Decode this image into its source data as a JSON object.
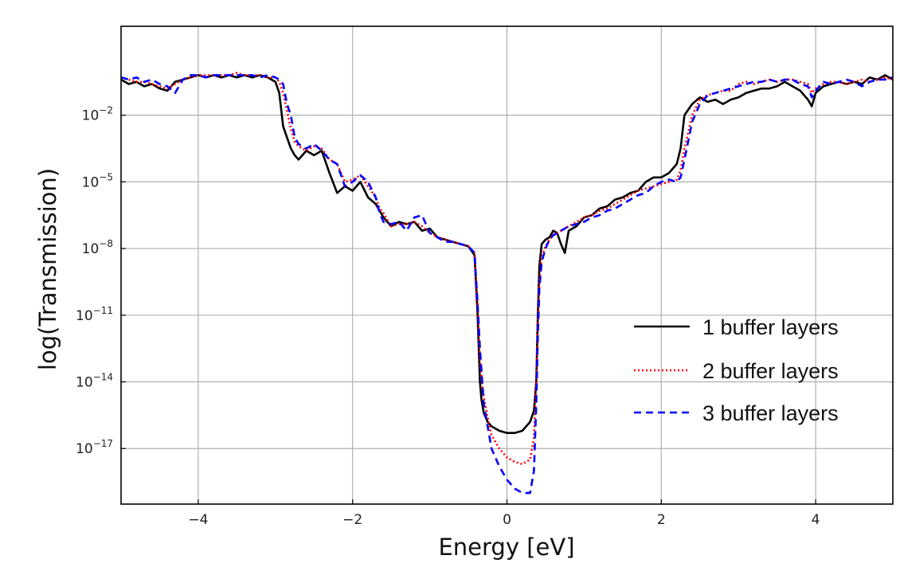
{
  "chart_data": {
    "type": "line",
    "title": "",
    "xlabel": "Energy [eV]",
    "ylabel": "log(Transmission)",
    "xlim": [
      -5,
      5
    ],
    "ylim_log10": [
      -19.5,
      2
    ],
    "yscale": "log",
    "grid": true,
    "legend_position": "lower-right",
    "xticks": [
      {
        "v": -4,
        "label": "−4"
      },
      {
        "v": -2,
        "label": "−2"
      },
      {
        "v": 0,
        "label": "0"
      },
      {
        "v": 2,
        "label": "2"
      },
      {
        "v": 4,
        "label": "4"
      }
    ],
    "yticks": [
      {
        "exp": -2,
        "base": "10",
        "sup": "−2"
      },
      {
        "exp": -5,
        "base": "10",
        "sup": "−5"
      },
      {
        "exp": -8,
        "base": "10",
        "sup": "−8"
      },
      {
        "exp": -11,
        "base": "10",
        "sup": "−11"
      },
      {
        "exp": -14,
        "base": "10",
        "sup": "−14"
      },
      {
        "exp": -17,
        "base": "10",
        "sup": "−17"
      }
    ],
    "series": [
      {
        "name": "1 buffer layers",
        "color": "#000000",
        "dash": "",
        "x": [
          -5,
          -4.9,
          -4.8,
          -4.7,
          -4.6,
          -4.5,
          -4.4,
          -4.3,
          -4.2,
          -4.1,
          -4.0,
          -3.9,
          -3.8,
          -3.7,
          -3.6,
          -3.5,
          -3.4,
          -3.3,
          -3.2,
          -3.1,
          -3.0,
          -2.95,
          -2.9,
          -2.85,
          -2.8,
          -2.75,
          -2.7,
          -2.6,
          -2.5,
          -2.4,
          -2.3,
          -2.2,
          -2.1,
          -2.0,
          -1.9,
          -1.8,
          -1.7,
          -1.65,
          -1.6,
          -1.5,
          -1.4,
          -1.3,
          -1.2,
          -1.1,
          -1.0,
          -0.9,
          -0.8,
          -0.7,
          -0.6,
          -0.5,
          -0.42,
          -0.38,
          -0.35,
          -0.33,
          -0.3,
          -0.25,
          -0.2,
          -0.1,
          0.0,
          0.1,
          0.2,
          0.3,
          0.35,
          0.38,
          0.4,
          0.42,
          0.45,
          0.5,
          0.55,
          0.6,
          0.65,
          0.7,
          0.75,
          0.8,
          0.9,
          1.0,
          1.1,
          1.2,
          1.3,
          1.4,
          1.5,
          1.6,
          1.7,
          1.8,
          1.9,
          2.0,
          2.1,
          2.2,
          2.25,
          2.3,
          2.4,
          2.5,
          2.6,
          2.7,
          2.8,
          2.9,
          3.0,
          3.1,
          3.2,
          3.3,
          3.4,
          3.5,
          3.6,
          3.7,
          3.8,
          3.9,
          3.95,
          4.0,
          4.1,
          4.2,
          4.3,
          4.4,
          4.5,
          4.6,
          4.7,
          4.8,
          4.9,
          5.0
        ],
        "y_log10": [
          -0.4,
          -0.6,
          -0.5,
          -0.7,
          -0.6,
          -0.8,
          -0.9,
          -0.5,
          -0.4,
          -0.3,
          -0.2,
          -0.3,
          -0.2,
          -0.3,
          -0.2,
          -0.3,
          -0.2,
          -0.3,
          -0.2,
          -0.3,
          -0.5,
          -1.0,
          -2.5,
          -3.0,
          -3.5,
          -3.8,
          -4.0,
          -3.6,
          -3.8,
          -3.6,
          -4.6,
          -5.5,
          -5.2,
          -5.4,
          -5.0,
          -5.7,
          -6.0,
          -6.3,
          -6.6,
          -7.0,
          -6.8,
          -6.9,
          -6.8,
          -7.2,
          -7.1,
          -7.5,
          -7.6,
          -7.7,
          -7.8,
          -7.9,
          -8.3,
          -11.0,
          -14.0,
          -14.8,
          -15.4,
          -15.8,
          -16.0,
          -16.2,
          -16.3,
          -16.3,
          -16.2,
          -15.8,
          -15.3,
          -14.0,
          -11.0,
          -8.8,
          -7.8,
          -7.6,
          -7.5,
          -7.2,
          -7.3,
          -7.8,
          -8.2,
          -7.2,
          -7.0,
          -6.6,
          -6.5,
          -6.2,
          -6.1,
          -5.8,
          -5.7,
          -5.5,
          -5.4,
          -5.0,
          -4.8,
          -4.8,
          -4.6,
          -4.2,
          -3.5,
          -2.0,
          -1.5,
          -1.2,
          -1.4,
          -1.3,
          -1.5,
          -1.3,
          -1.2,
          -1.0,
          -0.9,
          -0.8,
          -0.8,
          -0.7,
          -0.5,
          -0.7,
          -0.9,
          -1.3,
          -1.6,
          -1.0,
          -0.7,
          -0.6,
          -0.5,
          -0.6,
          -0.5,
          -0.6,
          -0.3,
          -0.4,
          -0.2,
          -0.4
        ]
      },
      {
        "name": "2 buffer layers",
        "color": "#ff0000",
        "dash": "2,3",
        "x": [
          -5,
          -4.9,
          -4.8,
          -4.7,
          -4.6,
          -4.5,
          -4.4,
          -4.3,
          -4.2,
          -4.1,
          -4.0,
          -3.9,
          -3.8,
          -3.7,
          -3.6,
          -3.5,
          -3.4,
          -3.3,
          -3.2,
          -3.1,
          -3.0,
          -2.95,
          -2.9,
          -2.85,
          -2.8,
          -2.75,
          -2.7,
          -2.6,
          -2.5,
          -2.4,
          -2.3,
          -2.2,
          -2.1,
          -2.0,
          -1.9,
          -1.8,
          -1.7,
          -1.65,
          -1.6,
          -1.5,
          -1.4,
          -1.3,
          -1.2,
          -1.1,
          -1.0,
          -0.9,
          -0.8,
          -0.7,
          -0.6,
          -0.5,
          -0.42,
          -0.38,
          -0.35,
          -0.33,
          -0.3,
          -0.25,
          -0.2,
          -0.1,
          0.0,
          0.1,
          0.2,
          0.3,
          0.35,
          0.38,
          0.4,
          0.42,
          0.45,
          0.5,
          0.55,
          0.6,
          0.65,
          0.7,
          0.75,
          0.8,
          0.9,
          1.0,
          1.1,
          1.2,
          1.3,
          1.4,
          1.5,
          1.6,
          1.7,
          1.8,
          1.9,
          2.0,
          2.1,
          2.2,
          2.25,
          2.3,
          2.4,
          2.5,
          2.6,
          2.7,
          2.8,
          2.9,
          3.0,
          3.1,
          3.2,
          3.3,
          3.4,
          3.5,
          3.6,
          3.7,
          3.8,
          3.9,
          3.95,
          4.0,
          4.1,
          4.2,
          4.3,
          4.4,
          4.5,
          4.6,
          4.7,
          4.8,
          4.9,
          5.0
        ],
        "y_log10": [
          -0.3,
          -0.4,
          -0.5,
          -0.5,
          -0.6,
          -0.7,
          -0.8,
          -0.6,
          -0.4,
          -0.3,
          -0.2,
          -0.2,
          -0.2,
          -0.2,
          -0.2,
          -0.1,
          -0.2,
          -0.2,
          -0.2,
          -0.3,
          -0.3,
          -0.5,
          -1.0,
          -1.8,
          -2.6,
          -3.2,
          -3.4,
          -3.6,
          -3.4,
          -3.5,
          -4.0,
          -4.2,
          -5.0,
          -4.9,
          -4.7,
          -5.2,
          -5.7,
          -6.2,
          -6.4,
          -7.0,
          -6.9,
          -6.9,
          -6.8,
          -7.0,
          -7.3,
          -7.5,
          -7.6,
          -7.7,
          -7.8,
          -7.9,
          -8.2,
          -10.5,
          -13.0,
          -13.8,
          -14.7,
          -15.6,
          -16.4,
          -17.0,
          -17.4,
          -17.6,
          -17.7,
          -17.5,
          -16.5,
          -14.0,
          -11.5,
          -9.5,
          -8.4,
          -7.9,
          -7.6,
          -7.4,
          -7.3,
          -7.2,
          -7.1,
          -7.0,
          -6.8,
          -6.6,
          -6.5,
          -6.3,
          -6.2,
          -6.0,
          -5.8,
          -5.6,
          -5.4,
          -5.3,
          -5.2,
          -5.1,
          -5.0,
          -4.9,
          -4.5,
          -3.5,
          -2.0,
          -1.3,
          -1.1,
          -1.0,
          -0.9,
          -0.9,
          -0.6,
          -0.5,
          -0.6,
          -0.5,
          -0.4,
          -0.5,
          -0.4,
          -0.4,
          -0.5,
          -0.6,
          -1.0,
          -0.8,
          -0.6,
          -0.5,
          -0.5,
          -0.6,
          -0.5,
          -0.4,
          -0.5,
          -0.4,
          -0.3,
          -0.4
        ]
      },
      {
        "name": "3 buffer layers",
        "color": "#0000ff",
        "dash": "9,6",
        "x": [
          -5,
          -4.9,
          -4.8,
          -4.7,
          -4.6,
          -4.5,
          -4.4,
          -4.3,
          -4.2,
          -4.1,
          -4.0,
          -3.9,
          -3.8,
          -3.7,
          -3.6,
          -3.5,
          -3.4,
          -3.3,
          -3.2,
          -3.1,
          -3.0,
          -2.95,
          -2.9,
          -2.85,
          -2.8,
          -2.75,
          -2.7,
          -2.6,
          -2.5,
          -2.4,
          -2.3,
          -2.2,
          -2.1,
          -2.0,
          -1.9,
          -1.8,
          -1.7,
          -1.65,
          -1.6,
          -1.5,
          -1.4,
          -1.3,
          -1.2,
          -1.1,
          -1.0,
          -0.9,
          -0.8,
          -0.7,
          -0.6,
          -0.5,
          -0.42,
          -0.38,
          -0.35,
          -0.33,
          -0.3,
          -0.25,
          -0.2,
          -0.1,
          0.0,
          0.1,
          0.2,
          0.3,
          0.35,
          0.38,
          0.4,
          0.42,
          0.45,
          0.5,
          0.55,
          0.6,
          0.65,
          0.7,
          0.75,
          0.8,
          0.9,
          1.0,
          1.1,
          1.2,
          1.3,
          1.4,
          1.5,
          1.6,
          1.7,
          1.8,
          1.9,
          2.0,
          2.1,
          2.2,
          2.25,
          2.3,
          2.4,
          2.5,
          2.6,
          2.7,
          2.8,
          2.9,
          3.0,
          3.1,
          3.2,
          3.3,
          3.4,
          3.5,
          3.6,
          3.7,
          3.8,
          3.9,
          3.95,
          4.0,
          4.1,
          4.2,
          4.3,
          4.4,
          4.5,
          4.6,
          4.7,
          4.8,
          4.9,
          5.0
        ],
        "y_log10": [
          -0.3,
          -0.4,
          -0.3,
          -0.5,
          -0.4,
          -0.6,
          -0.7,
          -1.0,
          -0.4,
          -0.2,
          -0.2,
          -0.3,
          -0.2,
          -0.2,
          -0.2,
          -0.2,
          -0.2,
          -0.2,
          -0.3,
          -0.2,
          -0.3,
          -0.4,
          -0.6,
          -1.5,
          -2.0,
          -3.0,
          -3.3,
          -3.5,
          -3.3,
          -3.6,
          -4.0,
          -4.2,
          -5.2,
          -5.0,
          -4.7,
          -5.0,
          -5.7,
          -6.4,
          -6.8,
          -6.9,
          -6.8,
          -7.2,
          -6.6,
          -6.5,
          -7.3,
          -7.5,
          -7.7,
          -7.7,
          -7.8,
          -7.9,
          -8.2,
          -10.5,
          -12.5,
          -13.5,
          -15.0,
          -16.0,
          -17.0,
          -17.8,
          -18.4,
          -18.8,
          -19.0,
          -19.0,
          -18.0,
          -15.0,
          -12.0,
          -9.8,
          -8.6,
          -8.0,
          -7.6,
          -7.4,
          -7.3,
          -7.2,
          -7.1,
          -7.0,
          -6.9,
          -6.8,
          -6.6,
          -6.5,
          -6.3,
          -6.2,
          -6.0,
          -5.8,
          -5.6,
          -5.5,
          -5.2,
          -5.0,
          -4.9,
          -5.0,
          -4.8,
          -4.0,
          -2.3,
          -1.5,
          -1.1,
          -1.0,
          -0.9,
          -0.8,
          -0.7,
          -0.6,
          -0.5,
          -0.5,
          -0.4,
          -0.5,
          -0.4,
          -0.4,
          -0.6,
          -0.7,
          -1.2,
          -0.9,
          -0.5,
          -0.6,
          -0.5,
          -0.4,
          -0.5,
          -0.7,
          -0.5,
          -0.4,
          -0.4,
          -0.3
        ]
      }
    ]
  }
}
